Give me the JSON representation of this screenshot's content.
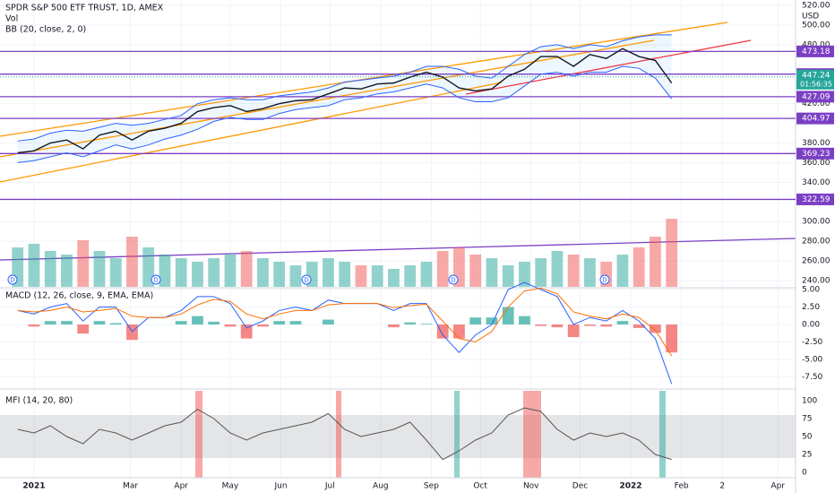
{
  "chart_data": {
    "type": "stock",
    "title": "SPDR S&P 500 ETF TRUST, 1D, AMEX",
    "volume_label": "Vol",
    "bb_label": "BB (20, close, 2, 0)",
    "macd_label": "MACD (12, 26, close, 9, EMA, EMA)",
    "mfi_label": "MFI (14, 20, 80)",
    "currency": "USD",
    "dividend_label": "D",
    "countdown": "01:56:35",
    "last_price": 447.24,
    "levels": [
      473.18,
      450.08,
      427.09,
      404.97,
      369.23,
      322.59
    ],
    "level_color": "#7b3fc4",
    "up_color": "#26a69a",
    "down_color": "#ef5350",
    "xlim": [
      -20.8,
      465.8
    ],
    "xticks": [
      {
        "value": 0,
        "label": "2021"
      },
      {
        "value": 59,
        "label": "Mar"
      },
      {
        "value": 90,
        "label": "Apr"
      },
      {
        "value": 120,
        "label": "May"
      },
      {
        "value": 151,
        "label": "Jun"
      },
      {
        "value": 181,
        "label": "Jul"
      },
      {
        "value": 212,
        "label": "Aug"
      },
      {
        "value": 243,
        "label": "Sep"
      },
      {
        "value": 273,
        "label": "Oct"
      },
      {
        "value": 304,
        "label": "Nov"
      },
      {
        "value": 334,
        "label": "Dec"
      },
      {
        "value": 365,
        "label": "2022"
      },
      {
        "value": 396,
        "label": "Feb"
      },
      {
        "value": 421,
        "label": "2"
      },
      {
        "value": 455,
        "label": "Apr"
      }
    ],
    "x": [
      -10,
      0,
      10,
      20,
      30,
      40,
      50,
      60,
      70,
      80,
      90,
      100,
      110,
      120,
      130,
      140,
      150,
      160,
      170,
      180,
      190,
      200,
      210,
      220,
      230,
      240,
      250,
      260,
      270,
      280,
      290,
      300,
      310,
      320,
      330,
      340,
      350,
      360,
      370,
      380,
      390
    ],
    "ylim": [
      233.6,
      525.5
    ],
    "yticks": [
      {
        "value": 520,
        "label": "520.00"
      },
      {
        "value": 500,
        "label": "500.00"
      },
      {
        "value": 480,
        "label": "480.00"
      },
      {
        "value": 420,
        "label": "420.00"
      },
      {
        "value": 380,
        "label": "380.00"
      },
      {
        "value": 360,
        "label": "360.00"
      },
      {
        "value": 340,
        "label": "340.00"
      },
      {
        "value": 300,
        "label": "300.00"
      },
      {
        "value": 280,
        "label": "280.00"
      },
      {
        "value": 260,
        "label": "260.00"
      },
      {
        "value": 240,
        "label": "240.00"
      }
    ],
    "series": [
      {
        "name": "Close",
        "color": "#131722",
        "values": [
          370,
          372,
          380,
          383,
          374,
          388,
          392,
          383,
          392,
          395,
          400,
          412,
          416,
          418,
          412,
          415,
          420,
          423,
          424,
          430,
          436,
          435,
          440,
          441,
          447,
          452,
          447,
          436,
          433,
          435,
          448,
          455,
          468,
          468,
          458,
          470,
          466,
          476,
          468,
          464,
          441
        ]
      },
      {
        "name": "BB Upper",
        "color": "#2962ff",
        "values": [
          382,
          384,
          390,
          393,
          392,
          396,
          400,
          398,
          400,
          404,
          408,
          420,
          424,
          426,
          424,
          424,
          428,
          430,
          432,
          436,
          442,
          444,
          446,
          448,
          452,
          458,
          458,
          455,
          448,
          446,
          458,
          470,
          478,
          480,
          476,
          480,
          478,
          484,
          488,
          490,
          490
        ]
      },
      {
        "name": "BB Lower",
        "color": "#2962ff",
        "values": [
          360,
          362,
          366,
          370,
          366,
          372,
          378,
          374,
          378,
          384,
          388,
          394,
          402,
          406,
          404,
          404,
          410,
          414,
          416,
          418,
          424,
          426,
          430,
          432,
          436,
          440,
          436,
          426,
          422,
          422,
          426,
          438,
          450,
          452,
          448,
          452,
          452,
          458,
          456,
          446,
          425
        ]
      }
    ],
    "volume": {
      "ylim": [
        0,
        100
      ],
      "values": [
        55,
        60,
        50,
        45,
        65,
        50,
        40,
        70,
        55,
        45,
        40,
        35,
        40,
        45,
        50,
        40,
        35,
        30,
        35,
        40,
        35,
        30,
        30,
        25,
        30,
        35,
        50,
        55,
        45,
        40,
        30,
        35,
        40,
        50,
        45,
        40,
        35,
        45,
        55,
        70,
        95
      ]
    },
    "macd": {
      "ylim": [
        -8.97,
        5.13
      ],
      "yticks": [
        {
          "value": 5,
          "label": "5.00"
        },
        {
          "value": 2.5,
          "label": "2.50"
        },
        {
          "value": 0,
          "label": "0.00"
        },
        {
          "value": -2.5,
          "label": "-2.50"
        },
        {
          "value": -5,
          "label": "-5.00"
        },
        {
          "value": -7.5,
          "label": "-7.50"
        }
      ],
      "macd_color": "#2962ff",
      "signal_color": "#ff6d00",
      "macd": [
        2,
        1.5,
        2.5,
        3,
        0.5,
        2.5,
        2.5,
        -1,
        1,
        1,
        2,
        4,
        4,
        3,
        -0.5,
        0.5,
        2,
        2.5,
        2,
        3.5,
        3,
        3,
        3,
        2,
        3,
        3,
        -1.5,
        -4,
        -1.5,
        0,
        5,
        6,
        5,
        4,
        0,
        1,
        0.5,
        2,
        0.5,
        -2,
        -8.5
      ],
      "signal": [
        2.0,
        1.8,
        2.0,
        2.5,
        1.8,
        2.0,
        2.3,
        1.2,
        1.0,
        1.0,
        1.5,
        2.8,
        3.6,
        3.3,
        1.5,
        0.8,
        1.5,
        2.0,
        2.0,
        2.8,
        3.0,
        3.0,
        3.0,
        2.4,
        2.7,
        2.9,
        0.5,
        -2.0,
        -2.5,
        -1.0,
        2.5,
        4.8,
        5.2,
        4.4,
        1.8,
        1.2,
        0.8,
        1.5,
        1.0,
        -0.8,
        -4.5
      ],
      "histogram": [
        0,
        -0.3,
        0.5,
        0.5,
        -1.3,
        0.5,
        0.2,
        -2.2,
        0,
        0,
        0.5,
        1.2,
        0.4,
        -0.3,
        -2,
        -0.3,
        0.5,
        0.5,
        0,
        0.7,
        0,
        0,
        0,
        -0.4,
        0.3,
        0.1,
        -2,
        -2,
        1,
        1,
        2.5,
        1.2,
        -0.2,
        -0.4,
        -1.8,
        -0.2,
        -0.3,
        0.5,
        -0.5,
        -1.2,
        -4
      ]
    },
    "mfi": {
      "ylim": [
        -6.25,
        113.75
      ],
      "yticks": [
        100,
        75,
        50,
        25,
        0
      ],
      "band": [
        20,
        80
      ],
      "color": "#555555",
      "values": [
        60,
        55,
        65,
        50,
        40,
        60,
        55,
        45,
        55,
        65,
        70,
        88,
        75,
        55,
        45,
        55,
        60,
        65,
        70,
        82,
        60,
        50,
        55,
        60,
        70,
        45,
        18,
        30,
        45,
        55,
        80,
        90,
        85,
        60,
        45,
        55,
        50,
        55,
        45,
        25,
        18
      ]
    }
  }
}
